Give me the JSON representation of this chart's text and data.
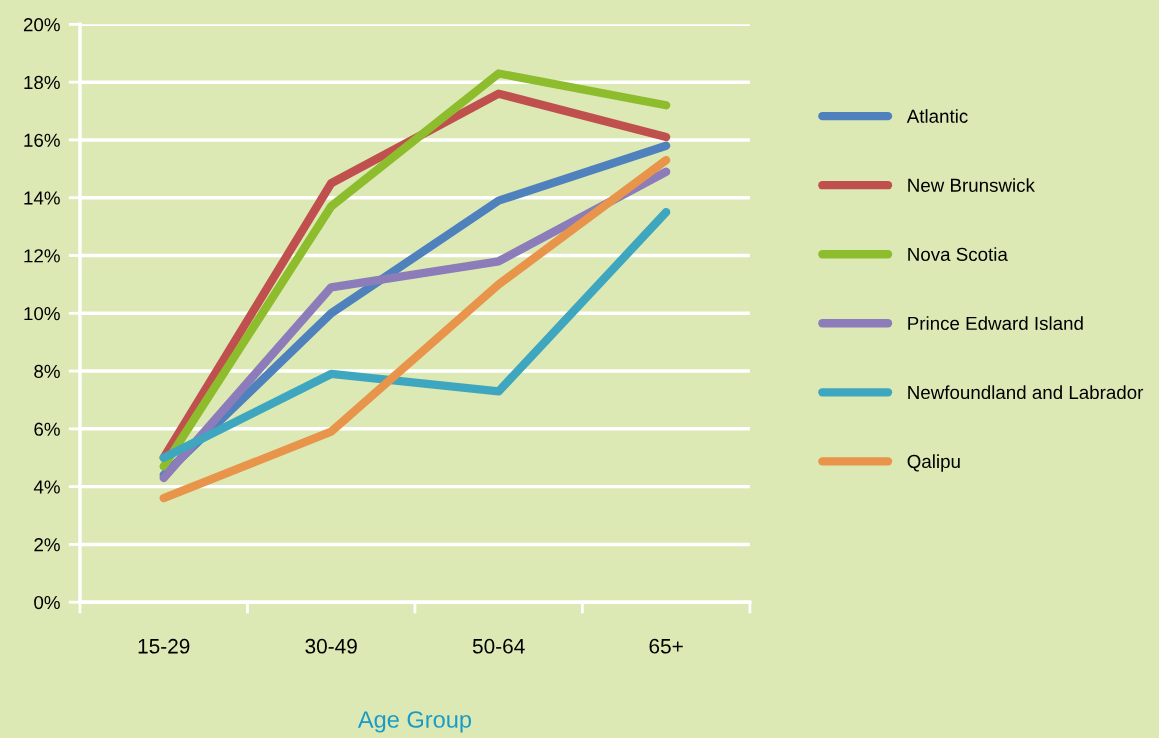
{
  "chart_data": {
    "type": "line",
    "xlabel": "Age Group",
    "categories": [
      "15-29",
      "30-49",
      "50-64",
      "65+"
    ],
    "ylim": [
      0,
      20
    ],
    "yticks": [
      {
        "value": 0,
        "label": "0%"
      },
      {
        "value": 2,
        "label": "2%"
      },
      {
        "value": 4,
        "label": "4%"
      },
      {
        "value": 6,
        "label": "6%"
      },
      {
        "value": 8,
        "label": "8%"
      },
      {
        "value": 10,
        "label": "10%"
      },
      {
        "value": 12,
        "label": "12%"
      },
      {
        "value": 14,
        "label": "14%"
      },
      {
        "value": 16,
        "label": "16%"
      },
      {
        "value": 18,
        "label": "18%"
      },
      {
        "value": 20,
        "label": "20%"
      }
    ],
    "grid": "y",
    "legend": "right",
    "marker": "none",
    "line_style": "solid",
    "series": [
      {
        "name": "Atlantic",
        "color": "#4f81bd",
        "values": [
          4.4,
          10.0,
          13.9,
          15.8
        ]
      },
      {
        "name": "New Brunswick",
        "color": "#c0504d",
        "values": [
          5.0,
          14.5,
          17.6,
          16.1
        ]
      },
      {
        "name": "Nova Scotia",
        "color": "#8dbd2c",
        "values": [
          4.7,
          13.7,
          18.3,
          17.2
        ]
      },
      {
        "name": "Prince Edward Island",
        "color": "#8c7cba",
        "values": [
          4.3,
          10.9,
          11.8,
          14.9
        ]
      },
      {
        "name": "Newfoundland and Labrador",
        "color": "#3fa6c0",
        "values": [
          5.0,
          7.9,
          7.3,
          13.5
        ]
      },
      {
        "name": "Qalipu",
        "color": "#e8944a",
        "values": [
          3.6,
          5.9,
          11.0,
          15.3
        ]
      }
    ]
  }
}
